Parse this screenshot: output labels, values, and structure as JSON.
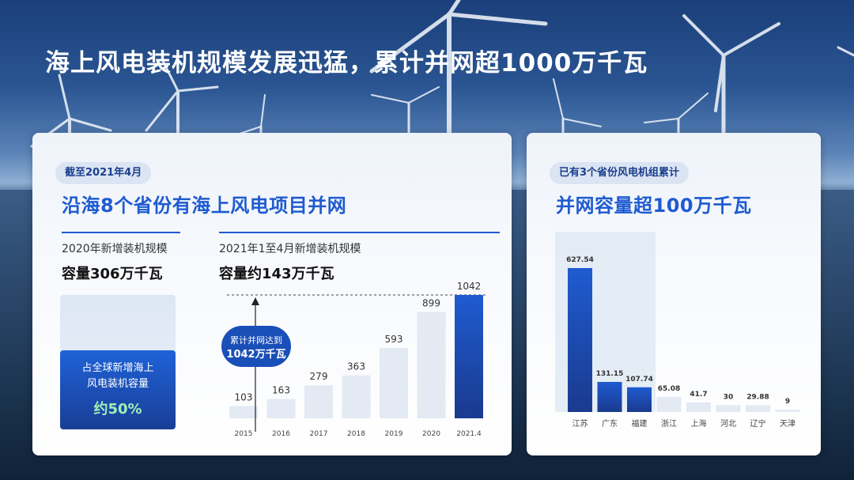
{
  "title": "海上风电装机规模发展迅猛，累计并网超1000万千瓦",
  "left_panel": {
    "pill": "截至2021年4月",
    "heading": "沿海8个省份有海上风电项目并网",
    "stat_2020": {
      "label": "2020年新增装机规模",
      "value": "容量306万千瓦"
    },
    "stat_2021": {
      "label": "2021年1至4月新增装机规模",
      "value": "容量约143万千瓦"
    },
    "share": {
      "line1": "占全球新增海上",
      "line2": "风电装机容量",
      "value": "约50%"
    },
    "callout": {
      "line1": "累计并网达到",
      "line2": "1042万千瓦"
    }
  },
  "right_panel": {
    "pill": "已有3个省份风电机组累计",
    "heading": "并网容量超100万千瓦"
  },
  "chart_data": [
    {
      "type": "bar",
      "categories": [
        "2015",
        "2016",
        "2017",
        "2018",
        "2019",
        "2020",
        "2021.4"
      ],
      "values": [
        103,
        163,
        279,
        363,
        593,
        899,
        1042
      ],
      "value_labels": [
        "103",
        "163",
        "279",
        "363",
        "593",
        "899",
        "1042"
      ],
      "title": "",
      "xlabel": "",
      "ylabel": "",
      "ylim": [
        0,
        1100
      ],
      "grid": false,
      "highlight_index": 6,
      "colors": {
        "base": "#e3eaf3",
        "highlight_top": "#1f5bd0",
        "highlight_bottom": "#1a3a8e"
      }
    },
    {
      "type": "bar",
      "categories": [
        "江苏",
        "广东",
        "福建",
        "浙江",
        "上海",
        "河北",
        "辽宁",
        "天津"
      ],
      "values": [
        627.54,
        131.15,
        107.74,
        65.08,
        41.7,
        30,
        29.88,
        9
      ],
      "value_labels": [
        "627.54",
        "131.15",
        "107.74",
        "65.08",
        "41.7",
        "30",
        "29.88",
        "9"
      ],
      "title": "",
      "xlabel": "",
      "ylabel": "",
      "ylim": [
        0,
        700
      ],
      "grid": false,
      "highlight_count": 3,
      "colors": {
        "highlight_top": "#1f5bd0",
        "highlight_bottom": "#1a3a8e",
        "base": "#e3eaf3",
        "band": "#dfe8f3"
      }
    }
  ]
}
